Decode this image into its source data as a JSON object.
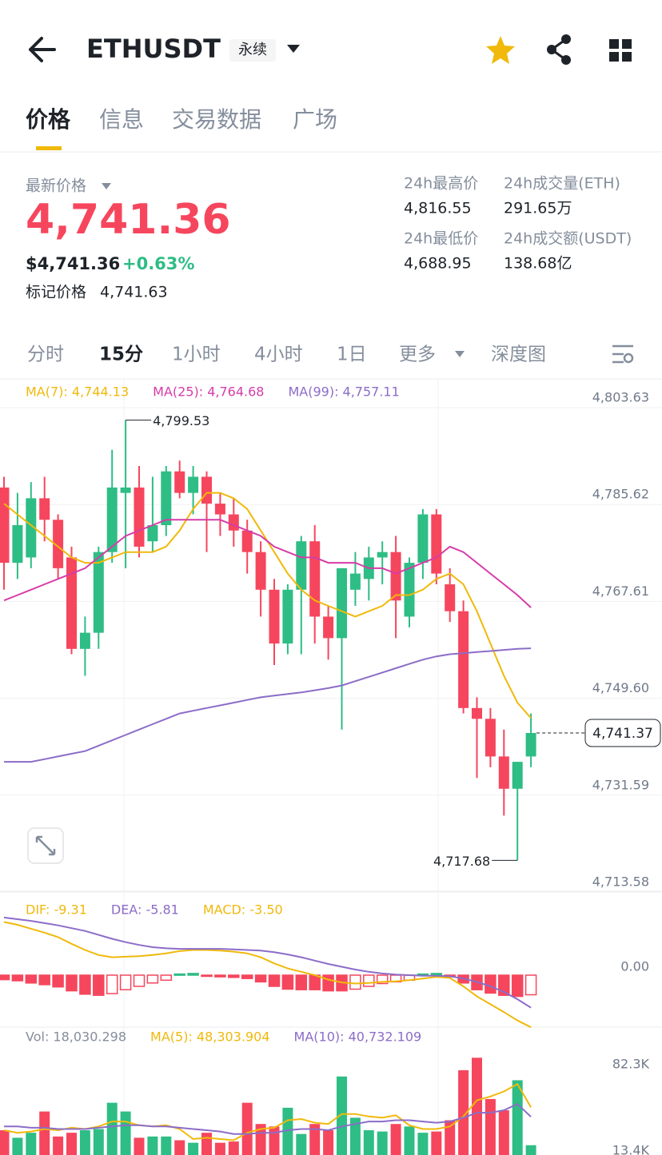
{
  "header": {
    "symbol": "ETHUSDT",
    "contract": "永续"
  },
  "tabs": [
    "价格",
    "信息",
    "交易数据",
    "广场"
  ],
  "ticker": {
    "last_label": "最新价格",
    "last_price": "4,741.36",
    "usd_price": "$4,741.36",
    "change": "+0.63%",
    "mark_label": "标记价格",
    "mark_price": "4,741.63"
  },
  "stats": [
    {
      "label": "24h最高价",
      "value": "4,816.55"
    },
    {
      "label": "24h成交量(ETH)",
      "value": "291.65万"
    },
    {
      "label": "24h最低价",
      "value": "4,688.95"
    },
    {
      "label": "24h成交额(USDT)",
      "value": "138.68亿"
    }
  ],
  "intervals": [
    "分时",
    "15分",
    "1小时",
    "4小时",
    "1日",
    "更多",
    "深度图"
  ],
  "chart_data": [
    {
      "type": "candlestick",
      "up_color": "#2ebd85",
      "down_color": "#f6465d",
      "open": [
        4787,
        4773,
        4774,
        4785,
        4781,
        4774,
        4757,
        4760,
        4775,
        4786,
        4787,
        4777,
        4780,
        4790,
        4786,
        4789,
        4784,
        4782,
        4779,
        4775,
        4768,
        4758,
        4768,
        4777,
        4763,
        4759,
        4768,
        4770,
        4774,
        4775,
        4763,
        4773,
        4782,
        4769,
        4764,
        4746,
        4744,
        4737,
        4731,
        4737
      ],
      "high": [
        4789,
        4786,
        4788,
        4789,
        4782,
        4776,
        4763,
        4776,
        4794,
        4799.53,
        4791,
        4789,
        4791,
        4792,
        4791,
        4790,
        4786,
        4785,
        4781,
        4777,
        4770,
        4769,
        4778,
        4780,
        4765,
        4772,
        4775,
        4776,
        4777,
        4778,
        4774,
        4783,
        4783,
        4772,
        4766,
        4748,
        4746,
        4742,
        4736,
        4745
      ],
      "low": [
        4768,
        4770,
        4772,
        4777,
        4770,
        4756,
        4752,
        4757,
        4773,
        4772,
        4774,
        4775,
        4778,
        4785,
        4782,
        4775,
        4778,
        4776,
        4771,
        4763,
        4754,
        4756,
        4756,
        4758,
        4755,
        4742,
        4765,
        4766,
        4769,
        4759,
        4761,
        4770,
        4769,
        4762,
        4745,
        4733,
        4735,
        4726,
        4717.68,
        4735
      ],
      "close": [
        4773,
        4780,
        4785,
        4781,
        4772,
        4757,
        4760,
        4775,
        4787,
        4787,
        4776,
        4780,
        4790,
        4786,
        4789,
        4784,
        4782,
        4779,
        4775,
        4768,
        4758,
        4768,
        4777,
        4763,
        4759,
        4772,
        4771,
        4774,
        4775,
        4766,
        4773,
        4782,
        4771,
        4764,
        4746,
        4744,
        4737,
        4731,
        4736,
        4741.37
      ],
      "series": [
        {
          "name": "MA(7): 4,744.13",
          "color": "#f0b90b",
          "values": [
            4784,
            4782,
            4780,
            4778,
            4776,
            4774,
            4773,
            4773,
            4774,
            4775,
            4775,
            4775,
            4776,
            4779,
            4783,
            4786,
            4786,
            4785,
            4783,
            4779,
            4775,
            4771,
            4768,
            4766,
            4765,
            4764,
            4763,
            4764,
            4765,
            4767,
            4767,
            4768,
            4770,
            4771,
            4769,
            4764,
            4758,
            4752,
            4747,
            4744.13
          ]
        },
        {
          "name": "MA(25): 4,764.68",
          "color": "#d63ca8",
          "values": [
            4766,
            4767,
            4768,
            4769,
            4770,
            4771,
            4772,
            4774,
            4776,
            4778,
            4779,
            4780,
            4781,
            4781,
            4781,
            4781,
            4781,
            4780,
            4779,
            4778,
            4776,
            4775,
            4774,
            4774,
            4773,
            4773,
            4773,
            4772,
            4772,
            4771,
            4772,
            4773,
            4774,
            4776,
            4775,
            4773,
            4771,
            4769,
            4767,
            4764.68
          ]
        },
        {
          "name": "MA(99): 4,757.11",
          "color": "#8c6cc8",
          "values": [
            4736,
            4736,
            4736,
            4736.5,
            4737,
            4737.5,
            4738,
            4739,
            4740,
            4741,
            4742,
            4743,
            4744,
            4745,
            4745.5,
            4746,
            4746.5,
            4747,
            4747.5,
            4748,
            4748.3,
            4748.6,
            4748.9,
            4749.3,
            4749.7,
            4750.2,
            4751,
            4751.8,
            4752.6,
            4753.4,
            4754.2,
            4755,
            4755.6,
            4756,
            4756.2,
            4756.4,
            4756.6,
            4756.8,
            4757,
            4757.11
          ]
        }
      ],
      "ylim": [
        4713.58,
        4803.63
      ],
      "yticks": [
        {
          "value": 4803.63,
          "label": "4,803.63"
        },
        {
          "value": 4785.62,
          "label": "4,785.62"
        },
        {
          "value": 4767.61,
          "label": "4,767.61"
        },
        {
          "value": 4749.6,
          "label": "4,749.60"
        },
        {
          "value": 4731.59,
          "label": "4,731.59"
        },
        {
          "value": 4713.58,
          "label": "4,713.58"
        }
      ],
      "annotations": [
        {
          "value": 4799.53,
          "label": "4,799.53"
        },
        {
          "value": 4717.68,
          "label": "4,717.68"
        }
      ],
      "last_price": {
        "value": 4741.37,
        "label": "4,741.37"
      }
    },
    {
      "type": "macd",
      "ylim": [
        -9.5,
        13
      ],
      "yticks": [
        {
          "value": 0,
          "label": "0.00"
        }
      ],
      "series": [
        {
          "name": "DIF: -9.31",
          "color": "#f0b90b",
          "values": [
            9.5,
            9.0,
            8.3,
            7.6,
            6.8,
            5.6,
            4.5,
            3.6,
            3.2,
            3.3,
            3.4,
            3.6,
            3.9,
            4.3,
            4.5,
            4.5,
            4.4,
            4.2,
            3.9,
            3.2,
            2.1,
            1.2,
            0.6,
            0.0,
            -0.8,
            -1.3,
            -1.5,
            -1.4,
            -1.2,
            -1.1,
            -0.9,
            -0.6,
            -0.3,
            -0.5,
            -2.0,
            -3.8,
            -5.2,
            -6.6,
            -8.1,
            -9.31
          ]
        },
        {
          "name": "DEA: -5.81",
          "color": "#8c6cc8",
          "values": [
            10.3,
            10.0,
            9.7,
            9.3,
            8.9,
            8.4,
            7.9,
            7.2,
            6.5,
            5.9,
            5.4,
            5.0,
            4.8,
            4.7,
            4.7,
            4.7,
            4.7,
            4.6,
            4.5,
            4.4,
            4.1,
            3.7,
            3.2,
            2.6,
            2.0,
            1.5,
            1.0,
            0.6,
            0.3,
            0.1,
            0.0,
            -0.1,
            -0.1,
            -0.2,
            -0.6,
            -1.2,
            -2.0,
            -3.0,
            -4.3,
            -5.81
          ]
        },
        {
          "name": "MACD: -3.50",
          "color": "#f0b90b",
          "values": [
            -0.8,
            -1.0,
            -1.4,
            -1.7,
            -2.1,
            -2.8,
            -3.4,
            -3.6,
            -3.3,
            -2.6,
            -2.0,
            -1.4,
            -0.9,
            0.2,
            0.3,
            -0.2,
            -0.3,
            -0.4,
            -0.6,
            -1.2,
            -2.0,
            -2.5,
            -2.6,
            -2.6,
            -2.8,
            -2.8,
            -2.5,
            -2.0,
            -1.5,
            -1.2,
            -0.9,
            0.2,
            0.3,
            -0.3,
            -1.4,
            -2.6,
            -3.2,
            -3.6,
            -3.8,
            -3.5
          ]
        }
      ]
    },
    {
      "type": "volume",
      "ylim": [
        10200,
        109300
      ],
      "yticks": [
        {
          "value": 82300,
          "label": "82.3K"
        },
        {
          "value": 13400,
          "label": "13.4K"
        }
      ],
      "series": [
        {
          "name": "Vol: 18,030.298",
          "color": "#848e9c",
          "values": [
            30000,
            24000,
            28000,
            45000,
            25000,
            28000,
            30000,
            31000,
            52000,
            45000,
            24000,
            25000,
            25000,
            22000,
            20000,
            28000,
            20000,
            21000,
            52000,
            35000,
            33000,
            48000,
            27000,
            35000,
            30000,
            73000,
            40000,
            30000,
            29000,
            35000,
            33000,
            28000,
            29000,
            38000,
            78000,
            88000,
            55000,
            46000,
            70000,
            18030.298
          ]
        },
        {
          "name": "MA(5): 48,303.904",
          "color": "#f0b90b",
          "values": [
            30000,
            28000,
            29000,
            31000,
            30000,
            32000,
            31000,
            33000,
            37000,
            37000,
            34000,
            33000,
            34000,
            31000,
            23000,
            24000,
            23000,
            22000,
            28000,
            31000,
            32000,
            38000,
            39000,
            36000,
            35000,
            43000,
            43000,
            41000,
            40000,
            42000,
            34000,
            31000,
            31000,
            33000,
            41000,
            54000,
            57000,
            61000,
            67000,
            48303.904
          ]
        },
        {
          "name": "MA(10): 40,732.109",
          "color": "#8c6cc8",
          "values": [
            33000,
            33000,
            32000,
            32000,
            31000,
            31000,
            31000,
            32000,
            33000,
            34000,
            34000,
            33000,
            33000,
            32000,
            31000,
            30000,
            29000,
            27000,
            27000,
            28000,
            28000,
            30000,
            31000,
            31000,
            30000,
            33000,
            35000,
            37000,
            37000,
            38000,
            38000,
            37000,
            36000,
            37000,
            40000,
            44000,
            44000,
            46000,
            51000,
            40732.109
          ]
        }
      ]
    }
  ]
}
